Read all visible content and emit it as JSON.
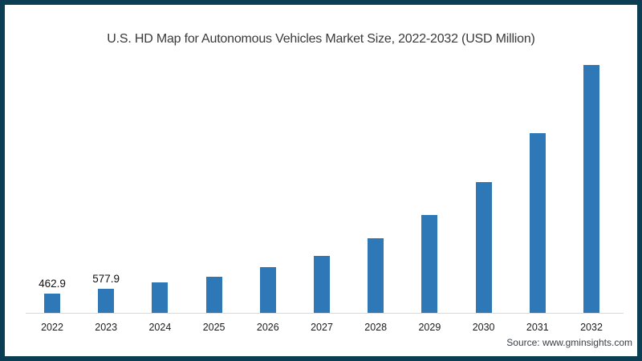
{
  "figure": {
    "source": "Source: www.gminsights.com"
  },
  "colors": {
    "bar": "#2E78B8",
    "frame_border": "#0C3E53",
    "axis_line": "#D9D9D9",
    "title_text": "#3A3A3A"
  },
  "chart_data": {
    "type": "bar",
    "title": "U.S. HD Map for Autonomous Vehicles Market Size, 2022-2032 (USD Million)",
    "categories": [
      "2022",
      "2023",
      "2024",
      "2025",
      "2026",
      "2027",
      "2028",
      "2029",
      "2030",
      "2031",
      "2032"
    ],
    "values": [
      462.9,
      577.9,
      720,
      860,
      1080,
      1350,
      1760,
      2320,
      3100,
      4240,
      5860
    ],
    "data_labels": [
      "462.9",
      "577.9",
      null,
      null,
      null,
      null,
      null,
      null,
      null,
      null,
      null
    ],
    "xlabel": "",
    "ylabel": "",
    "ylim": [
      0,
      6000
    ],
    "grid": false,
    "legend": null,
    "bar_color": "#2E78B8"
  }
}
